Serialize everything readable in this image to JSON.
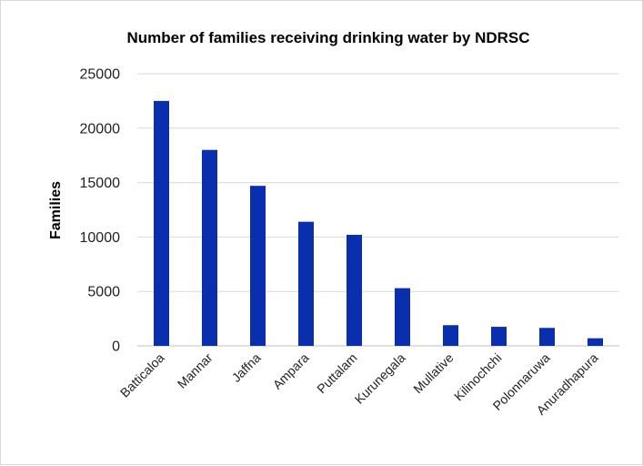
{
  "chart_data": {
    "type": "bar",
    "title": "Number of families receiving drinking water by NDRSC",
    "xlabel": "",
    "ylabel": "Families",
    "ylim": [
      0,
      25000
    ],
    "yticks": [
      0,
      5000,
      10000,
      15000,
      20000,
      25000
    ],
    "grid": true,
    "legend": "none",
    "bar_color": "#0a2fae",
    "categories": [
      "Batticaloa",
      "Mannar",
      "Jaffna",
      "Ampara",
      "Puttalam",
      "Kurunegala",
      "Mullative",
      "Kilinochchi",
      "Polonnaruwa",
      "Anuradhapura"
    ],
    "values": [
      22500,
      18000,
      14700,
      11400,
      10200,
      5300,
      1900,
      1750,
      1650,
      700
    ]
  }
}
